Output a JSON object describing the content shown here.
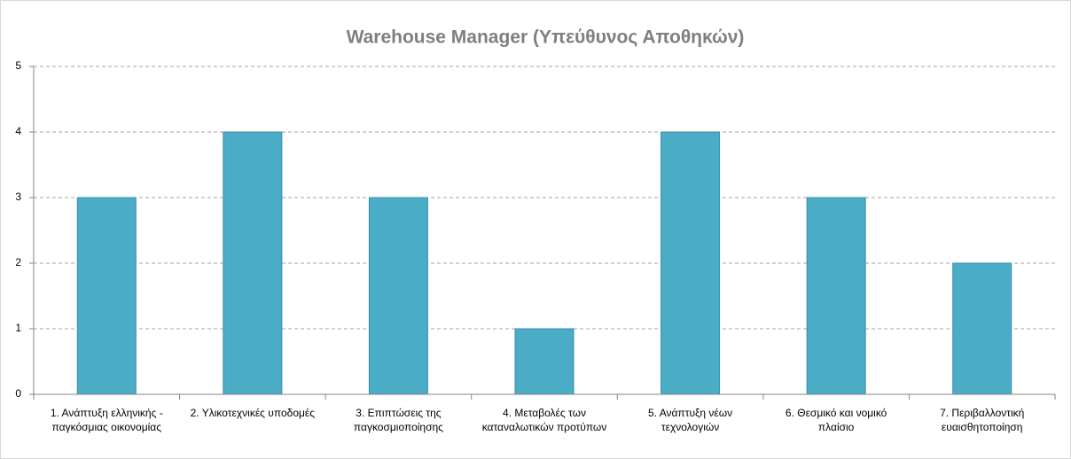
{
  "chart_data": {
    "type": "bar",
    "title": "Warehouse Manager (Υπεύθυνος Αποθηκών)",
    "categories": [
      "1. Ανάπτυξη ελληνικής - παγκόσμιας οικονομίας",
      "2. Υλικοτεχνικές υποδομές",
      "3. Επιπτώσεις της παγκοσμιοποίησης",
      "4. Μεταβολές των καταναλωτικών προτύπων",
      "5. Ανάπτυξη νέων τεχνολογιών",
      "6. Θεσμικό και νομικό πλαίσιο",
      "7. Περιβαλλοντική ευαισθητοποίηση"
    ],
    "values": [
      3,
      4,
      3,
      1,
      4,
      3,
      2
    ],
    "color": "#4bacc6",
    "ylim": [
      0,
      5
    ],
    "yticks": [
      0,
      1,
      2,
      3,
      4,
      5
    ],
    "grid": true
  }
}
